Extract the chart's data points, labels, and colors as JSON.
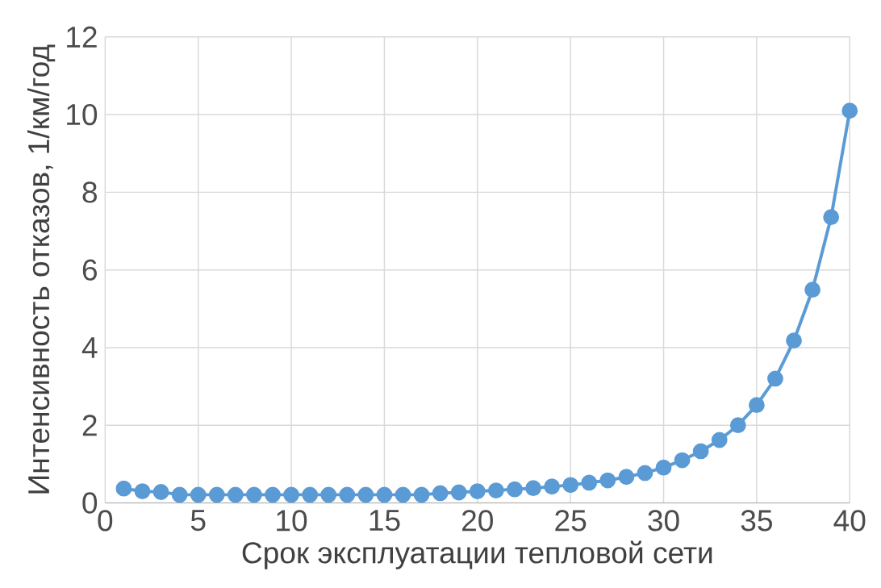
{
  "chart_data": {
    "type": "line",
    "xlabel": "Срок эксплуатации тепловой сети",
    "ylabel": "Интенсивность отказов, 1/км/год",
    "x": [
      1,
      2,
      3,
      4,
      5,
      6,
      7,
      8,
      9,
      10,
      11,
      12,
      13,
      14,
      15,
      16,
      17,
      18,
      19,
      20,
      21,
      22,
      23,
      24,
      25,
      26,
      27,
      28,
      29,
      30,
      31,
      32,
      33,
      34,
      35,
      36,
      37,
      38,
      39,
      40
    ],
    "series": [
      {
        "color": "#5b9bd5",
        "values": [
          0.37,
          0.3,
          0.28,
          0.21,
          0.21,
          0.21,
          0.21,
          0.21,
          0.21,
          0.21,
          0.21,
          0.21,
          0.21,
          0.21,
          0.21,
          0.21,
          0.21,
          0.25,
          0.27,
          0.3,
          0.32,
          0.35,
          0.38,
          0.42,
          0.46,
          0.52,
          0.58,
          0.67,
          0.77,
          0.91,
          1.1,
          1.33,
          1.62,
          2.0,
          2.52,
          3.2,
          4.18,
          5.49,
          7.36,
          10.1
        ]
      }
    ],
    "xlim": [
      0,
      40
    ],
    "ylim": [
      0,
      12
    ],
    "xticks": [
      0,
      5,
      10,
      15,
      20,
      25,
      30,
      35,
      40
    ],
    "yticks": [
      0,
      2,
      4,
      6,
      8,
      10,
      12
    ],
    "grid": true,
    "marker": "circle",
    "line_style": "solid"
  }
}
